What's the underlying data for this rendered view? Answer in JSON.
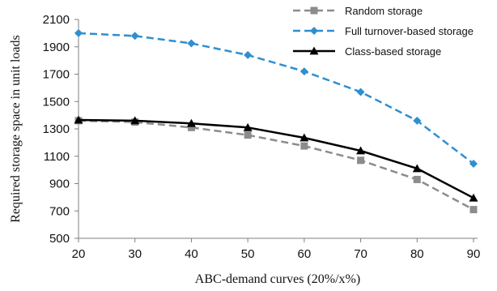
{
  "chart_data": {
    "type": "line",
    "xlabel": "ABC-demand curves (20%/x%)",
    "ylabel": "Required storage space in unit loads",
    "x": [
      20,
      30,
      40,
      50,
      60,
      70,
      80,
      90
    ],
    "xlim": [
      20,
      90
    ],
    "ylim": [
      500,
      2100
    ],
    "yticks": [
      500,
      700,
      900,
      1100,
      1300,
      1500,
      1700,
      1900,
      2100
    ],
    "grid": false,
    "legend_position": "top-right",
    "series": [
      {
        "name": "Random storage",
        "values": [
          1360,
          1350,
          1310,
          1255,
          1175,
          1070,
          930,
          710
        ],
        "color": "#8c8c8c",
        "line": "dashed",
        "marker": "square"
      },
      {
        "name": "Full turnover-based storage",
        "values": [
          2000,
          1980,
          1925,
          1840,
          1720,
          1570,
          1360,
          1045
        ],
        "color": "#2f8fd0",
        "line": "dashed",
        "marker": "diamond"
      },
      {
        "name": "Class-based storage",
        "values": [
          1365,
          1360,
          1340,
          1310,
          1235,
          1140,
          1010,
          795
        ],
        "color": "#000000",
        "line": "solid",
        "marker": "triangle"
      }
    ]
  }
}
